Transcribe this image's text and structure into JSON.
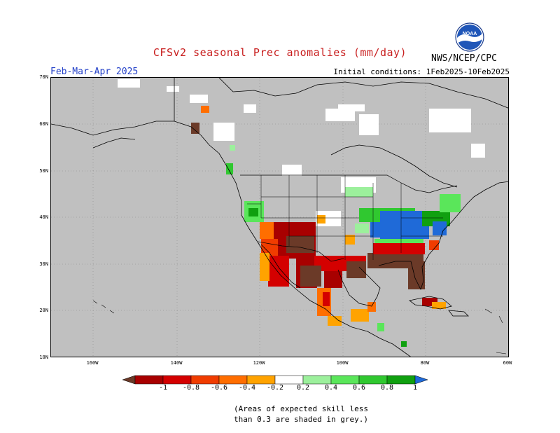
{
  "title": "CFSv2 seasonal Prec anomalies (mm/day)",
  "season": "Feb-Mar-Apr 2025",
  "initial_conditions": "Initial conditions: 1Feb2025-10Feb2025",
  "agency": "NWS/NCEP/CPC",
  "logo_text": "NOAA",
  "lat_labels": [
    "70N",
    "60N",
    "50N",
    "40N",
    "30N",
    "20N",
    "10N"
  ],
  "lon_labels": [
    "160W",
    "140W",
    "120W",
    "100W",
    "80W",
    "60W"
  ],
  "legend": {
    "labels": [
      "-1",
      "-0.8",
      "-0.6",
      "-0.4",
      "-0.2",
      "0.2",
      "0.4",
      "0.6",
      "0.8",
      "1"
    ],
    "colors": [
      "#6b3a28",
      "#a80000",
      "#d40000",
      "#f03c00",
      "#ff6e00",
      "#ffa300",
      "#ffffff",
      "#9cf09c",
      "#5ae65a",
      "#30c830",
      "#10a010",
      "#1f6ad8"
    ]
  },
  "footnote": [
    "(Areas of expected skill less",
    "than 0.3 are shaded in grey.)"
  ],
  "colors": {
    "title": "#c81e1e",
    "season": "#2340c8",
    "land_no_skill": "#c0c0c0"
  }
}
